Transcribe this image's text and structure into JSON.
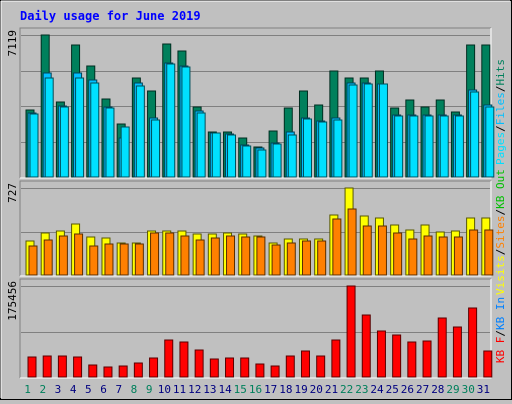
{
  "title": "Daily usage for June 2019",
  "colors": {
    "background": "#c0c0c0",
    "plot": "#c0c0c0",
    "title": "#0000ff",
    "hits": "#00805c",
    "files": "#00c0ff",
    "pages": "#00e0ff",
    "visits": "#ffff00",
    "sites": "#ff8000",
    "kbin": "#0080ff",
    "kbout": "#00c000",
    "kbf": "#ff0000",
    "weekend_day": "#00805c",
    "weekday": "#000080"
  },
  "chart_data": [
    {
      "type": "bar",
      "title": "Daily usage for June 2019",
      "axis_max_label": "7119",
      "ylim": [
        0,
        7119
      ],
      "legend": [
        {
          "text": "Pages",
          "color_key": "pages"
        },
        {
          "text": "/",
          "color_key": "separator"
        },
        {
          "text": "Files",
          "color_key": "files"
        },
        {
          "text": "/",
          "color_key": "separator"
        },
        {
          "text": "Hits",
          "color_key": "hits"
        }
      ],
      "series": [
        {
          "name": "Hits",
          "color_key": "hits",
          "values": [
            3350,
            7119,
            3750,
            6600,
            5550,
            3900,
            2650,
            4950,
            4300,
            6650,
            6300,
            3500,
            2250,
            2250,
            1950,
            1500,
            2300,
            3450,
            4300,
            3600,
            5300,
            4950,
            4950,
            5300,
            3450,
            3850,
            3500,
            3850,
            3250,
            6600,
            6600
          ]
        },
        {
          "name": "Files",
          "color_key": "files",
          "values": [
            3200,
            5200,
            3550,
            5200,
            4850,
            3500,
            1950,
            4700,
            2950,
            5700,
            5550,
            3300,
            2200,
            2150,
            1600,
            1450,
            1700,
            2250,
            2950,
            2800,
            2950,
            4700,
            4700,
            4650,
            3100,
            3100,
            3100,
            3100,
            3100,
            4350,
            3600
          ]
        },
        {
          "name": "Pages",
          "color_key": "pages",
          "values": [
            3150,
            4950,
            3500,
            4950,
            4700,
            3450,
            2500,
            4550,
            2850,
            5650,
            5500,
            3200,
            2200,
            2100,
            1550,
            1350,
            1650,
            2100,
            2900,
            2750,
            2850,
            4600,
            4650,
            4650,
            3050,
            3050,
            3050,
            3050,
            3050,
            4250,
            3500
          ]
        }
      ]
    },
    {
      "type": "bar",
      "axis_max_label": "727",
      "ylim": [
        0,
        727
      ],
      "legend": [
        {
          "text": "Visits",
          "color_key": "visits"
        },
        {
          "text": "/",
          "color_key": "separator"
        },
        {
          "text": "Sites",
          "color_key": "sites"
        },
        {
          "text": "/",
          "color_key": "separator"
        },
        {
          "text": "KB Out",
          "color_key": "kbout"
        }
      ],
      "series": [
        {
          "name": "Visits",
          "color_key": "visits",
          "values": [
            280,
            350,
            370,
            430,
            320,
            310,
            270,
            270,
            370,
            370,
            370,
            340,
            340,
            350,
            340,
            330,
            270,
            300,
            300,
            300,
            500,
            727,
            490,
            480,
            420,
            380,
            420,
            360,
            370,
            480,
            480
          ]
        },
        {
          "name": "Sites",
          "color_key": "sites",
          "values": [
            240,
            290,
            330,
            340,
            240,
            260,
            260,
            260,
            350,
            350,
            330,
            290,
            310,
            330,
            320,
            320,
            250,
            270,
            280,
            280,
            470,
            550,
            410,
            410,
            350,
            300,
            330,
            320,
            320,
            380,
            380
          ]
        }
      ]
    },
    {
      "type": "bar",
      "axis_max_label": "175456",
      "ylim": [
        0,
        175456
      ],
      "legend": [
        {
          "text": "KB F",
          "color_key": "kbf"
        },
        {
          "text": "/",
          "color_key": "separator"
        },
        {
          "text": "KB In",
          "color_key": "kbin"
        }
      ],
      "series": [
        {
          "name": "KB F",
          "color_key": "kbf",
          "values": [
            38000,
            40000,
            41000,
            39000,
            24000,
            20000,
            21000,
            27000,
            37000,
            72000,
            67000,
            52000,
            35000,
            36000,
            36000,
            25000,
            22000,
            41000,
            51000,
            40000,
            71000,
            175456,
            120000,
            89000,
            81000,
            68000,
            69000,
            113000,
            97000,
            133000,
            51000
          ]
        }
      ]
    }
  ],
  "x_axis": {
    "days": [
      "1",
      "2",
      "3",
      "4",
      "5",
      "6",
      "7",
      "8",
      "9",
      "10",
      "11",
      "12",
      "13",
      "14",
      "15",
      "16",
      "17",
      "18",
      "19",
      "20",
      "21",
      "22",
      "23",
      "24",
      "25",
      "26",
      "27",
      "28",
      "29",
      "30",
      "31"
    ],
    "weekend_days": [
      "1",
      "2",
      "8",
      "9",
      "15",
      "16",
      "22",
      "23",
      "29",
      "30"
    ]
  }
}
